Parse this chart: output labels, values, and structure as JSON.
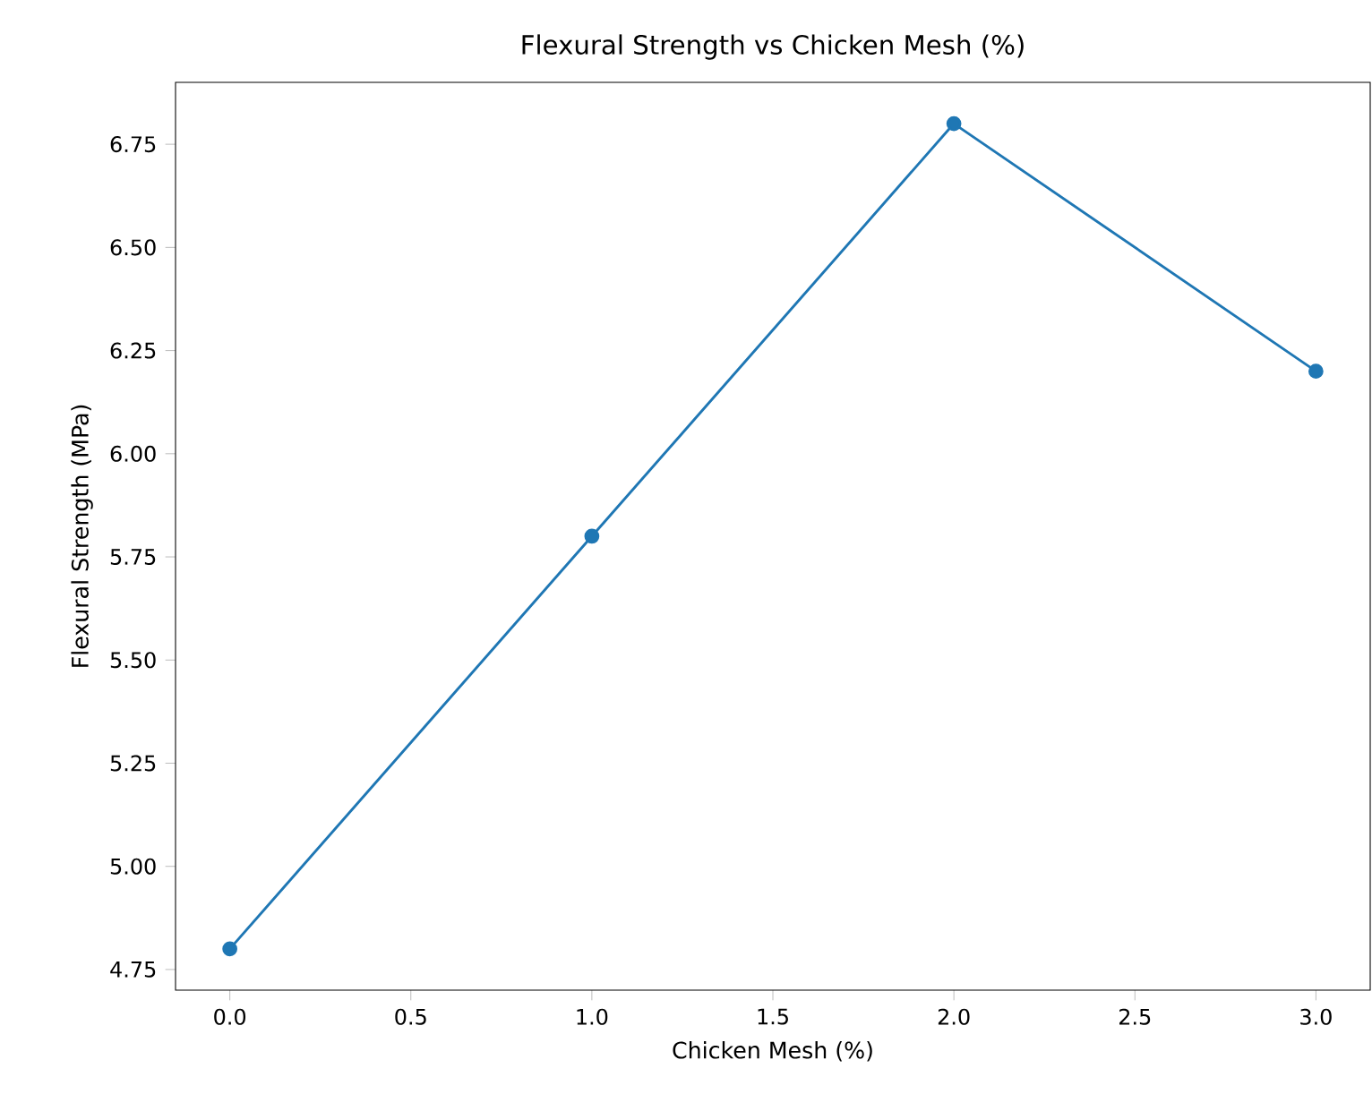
{
  "chart_data": {
    "type": "line",
    "title": "Flexural Strength vs Chicken Mesh (%)",
    "xlabel": "Chicken Mesh (%)",
    "ylabel": "Flexural Strength (MPa)",
    "x": [
      0,
      1,
      2,
      3
    ],
    "series": [
      {
        "color": "#1f77b4",
        "values": [
          4.8,
          5.8,
          6.8,
          6.2
        ]
      }
    ],
    "xlim": [
      -0.15,
      3.15
    ],
    "ylim": [
      4.7,
      6.9
    ],
    "xticks": [
      {
        "value": 0,
        "label": "0.0"
      },
      {
        "value": 0.5,
        "label": "0.5"
      },
      {
        "value": 1,
        "label": "1.0"
      },
      {
        "value": 1.5,
        "label": "1.5"
      },
      {
        "value": 2,
        "label": "2.0"
      },
      {
        "value": 2.5,
        "label": "2.5"
      },
      {
        "value": 3,
        "label": "3.0"
      }
    ],
    "yticks": [
      {
        "value": 4.75,
        "label": "4.75"
      },
      {
        "value": 5,
        "label": "5.00"
      },
      {
        "value": 5.25,
        "label": "5.25"
      },
      {
        "value": 5.5,
        "label": "5.50"
      },
      {
        "value": 5.75,
        "label": "5.75"
      },
      {
        "value": 6,
        "label": "6.00"
      },
      {
        "value": 6.25,
        "label": "6.25"
      },
      {
        "value": 6.5,
        "label": "6.50"
      },
      {
        "value": 6.75,
        "label": "6.75"
      }
    ],
    "marker": "circle",
    "line_style": "solid"
  }
}
